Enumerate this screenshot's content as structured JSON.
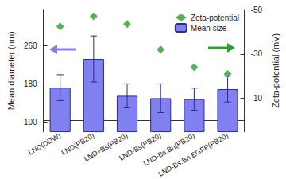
{
  "chart_data": {
    "type": "bar",
    "categories": [
      "LND(DDW)",
      "LND(PB20)",
      "LND+Bs(PB20)",
      "LND-Bs(PB20)",
      "LND-Bs:Bn(PB20)",
      "LND-Bs:Bn EGFP(PB20)"
    ],
    "series": [
      {
        "name": "Zeta-potential",
        "type": "scatter",
        "axis": "y2",
        "marker": "diamond",
        "color": "#2e9e2e",
        "values": [
          -42.4,
          -47,
          -43.5,
          -32,
          -24,
          -21
        ]
      },
      {
        "name": "Mean size",
        "type": "bar",
        "color": "#8080f0",
        "values": [
          172,
          232,
          155,
          150,
          148,
          169
        ],
        "errors": [
          27,
          48,
          25,
          30,
          23,
          27
        ]
      }
    ],
    "y_label": "Mean diameter (nm)",
    "y2_label": "Zeta-potential (mV)",
    "ylim": [
      80,
      335
    ],
    "yticks": [
      100,
      180,
      260
    ],
    "y2lim": [
      -50,
      5
    ],
    "y2ticks": [
      -50,
      -30,
      -10
    ],
    "grid": false,
    "legend": "top-right"
  }
}
